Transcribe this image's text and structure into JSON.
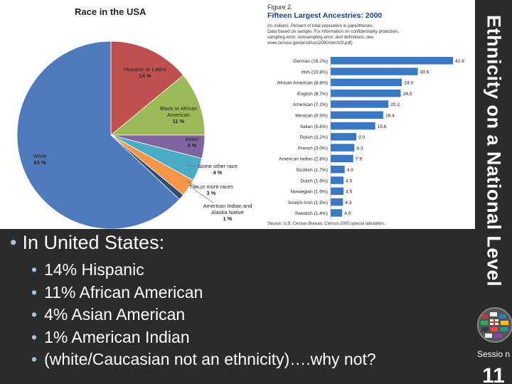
{
  "pie_chart": {
    "title": "Race in the USA",
    "slices": [
      {
        "label": "White",
        "value_label": "63 %",
        "value": 63,
        "color": "#4f7bbd"
      },
      {
        "label": "Hispanic or Latino",
        "value_label": "14 %",
        "value": 14,
        "color": "#c0504d"
      },
      {
        "label": "Black or African American",
        "value_label": "11 %",
        "value": 11,
        "color": "#9bbb59"
      },
      {
        "label": "Asian",
        "value_label": "4 %",
        "value": 4,
        "color": "#8064a2"
      },
      {
        "label": "Some other race",
        "value_label": "4 %",
        "value": 4,
        "color": "#4bacc6"
      },
      {
        "label": "Two or more races",
        "value_label": "3 %",
        "value": 3,
        "color": "#f79646"
      },
      {
        "label": "American Indian and Alaska Native",
        "value_label": "1 %",
        "value": 1,
        "color": "#2c4d75"
      }
    ]
  },
  "chart_data": [
    {
      "type": "pie",
      "title": "Race in the USA",
      "categories": [
        "White",
        "Hispanic or Latino",
        "Black or African American",
        "Asian",
        "Some other race",
        "Two or more races",
        "American Indian and Alaska Native"
      ],
      "values": [
        63,
        14,
        11,
        4,
        4,
        3,
        1
      ]
    },
    {
      "type": "bar",
      "title": "Fifteen Largest Ancestries: 2000",
      "categories": [
        "German (15.2%)",
        "Irish (10.8%)",
        "African American (8.8%)",
        "English (8.7%)",
        "American (7.2%)",
        "Mexican (6.5%)",
        "Italian (5.6%)",
        "Polish (3.2%)",
        "French (3.0%)",
        "American Indian (2.8%)",
        "Scottish (1.7%)",
        "Dutch (1.6%)",
        "Norwegian (1.6%)",
        "Scotch-Irish (1.5%)",
        "Swedish (1.4%)"
      ],
      "values": [
        42.8,
        30.5,
        24.9,
        24.5,
        20.2,
        18.4,
        15.6,
        9.0,
        8.3,
        7.9,
        4.9,
        4.5,
        4.5,
        4.3,
        4.0
      ],
      "xlim": [
        0,
        45
      ]
    }
  ],
  "bar_chart": {
    "figure_label": "Figure 2.",
    "title": "Fifteen Largest Ancestries: 2000",
    "note_lines": [
      "(In millions. Percent of total population in parentheses.",
      "Data based on sample. For information on confidentiality protection,",
      "sampling error, nonsampling error, and definitions, see",
      "www.census.gov/prod/cen2000/doc/sf3.pdf)"
    ],
    "source": "Source: U.S. Census Bureau, Census 2000 special tabulation.",
    "bar_color": "#3b78c4",
    "value_labels": [
      "42.8",
      "30.5",
      "24.9",
      "24.5",
      "20.2",
      "18.4",
      "15.6",
      "9.0",
      "8.3",
      "7.9",
      "4.9",
      "4.5",
      "4.5",
      "4.3",
      "4.0"
    ]
  },
  "side": {
    "title": "Ethnicity on a National Level",
    "icon": "globe-icon",
    "session_label": "Sessio n",
    "session_number": "11"
  },
  "bullets": {
    "main": "In United States:",
    "items": [
      "14% Hispanic",
      "11% African American",
      "4% Asian American",
      "1% American Indian",
      "(white/Caucasian not an ethnicity)….why not?"
    ]
  }
}
